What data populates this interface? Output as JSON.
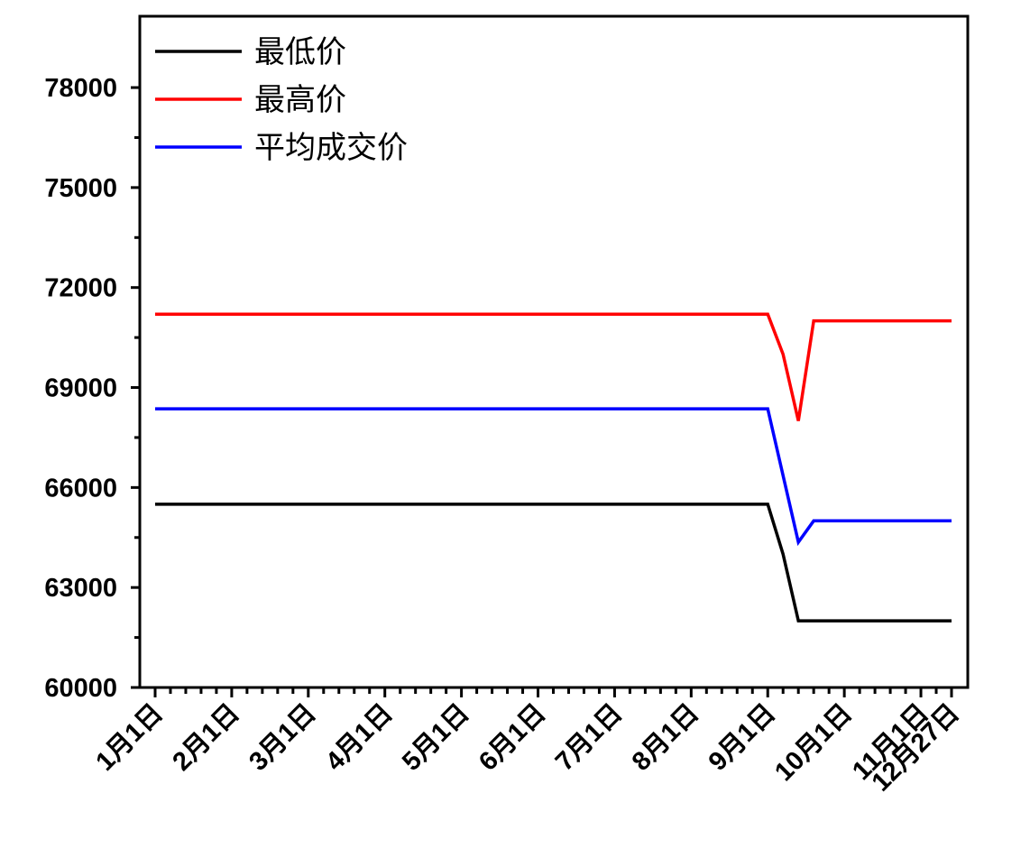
{
  "chart_data": {
    "type": "line",
    "categories": [
      "1月1日",
      null,
      null,
      null,
      null,
      "2月1日",
      null,
      null,
      null,
      null,
      "3月1日",
      null,
      null,
      null,
      null,
      "4月1日",
      null,
      null,
      null,
      null,
      "5月1日",
      null,
      null,
      null,
      null,
      "6月1日",
      null,
      null,
      null,
      null,
      "7月1日",
      null,
      null,
      null,
      null,
      "8月1日",
      null,
      null,
      null,
      null,
      "9月1日",
      null,
      null,
      null,
      null,
      "10月1日",
      null,
      null,
      null,
      null,
      "11月1日",
      null,
      "12月27日"
    ],
    "series": [
      {
        "name": "最低价",
        "color": "#000000",
        "values": [
          65500,
          65500,
          65500,
          65500,
          65500,
          65500,
          65500,
          65500,
          65500,
          65500,
          65500,
          65500,
          65500,
          65500,
          65500,
          65500,
          65500,
          65500,
          65500,
          65500,
          65500,
          65500,
          65500,
          65500,
          65500,
          65500,
          65500,
          65500,
          65500,
          65500,
          65500,
          65500,
          65500,
          65500,
          65500,
          65500,
          65500,
          65500,
          65500,
          65500,
          65500,
          64000,
          62000,
          62000,
          62000,
          62000,
          62000,
          62000,
          62000,
          62000,
          62000,
          62000,
          62000
        ]
      },
      {
        "name": "最高价",
        "color": "#ff0000",
        "values": [
          71200,
          71200,
          71200,
          71200,
          71200,
          71200,
          71200,
          71200,
          71200,
          71200,
          71200,
          71200,
          71200,
          71200,
          71200,
          71200,
          71200,
          71200,
          71200,
          71200,
          71200,
          71200,
          71200,
          71200,
          71200,
          71200,
          71200,
          71200,
          71200,
          71200,
          71200,
          71200,
          71200,
          71200,
          71200,
          71200,
          71200,
          71200,
          71200,
          71200,
          71200,
          70000,
          68000,
          71000,
          71000,
          71000,
          71000,
          71000,
          71000,
          71000,
          71000,
          71000,
          71000
        ]
      },
      {
        "name": "平均成交价",
        "color": "#0000ff",
        "values": [
          68360,
          68360,
          68360,
          68360,
          68360,
          68360,
          68360,
          68360,
          68360,
          68360,
          68360,
          68360,
          68360,
          68360,
          68360,
          68360,
          68360,
          68360,
          68360,
          68360,
          68360,
          68360,
          68360,
          68360,
          68360,
          68360,
          68360,
          68360,
          68360,
          68360,
          68360,
          68360,
          68360,
          68360,
          68360,
          68360,
          68360,
          68360,
          68360,
          68360,
          68360,
          66360,
          64360,
          65000,
          65000,
          65000,
          65000,
          65000,
          65000,
          65000,
          65000,
          65000,
          65000
        ]
      }
    ],
    "ylim": [
      60000,
      80140
    ],
    "yticks": [
      60000,
      63000,
      66000,
      69000,
      72000,
      75000,
      78000
    ],
    "legend": "upper-left"
  }
}
